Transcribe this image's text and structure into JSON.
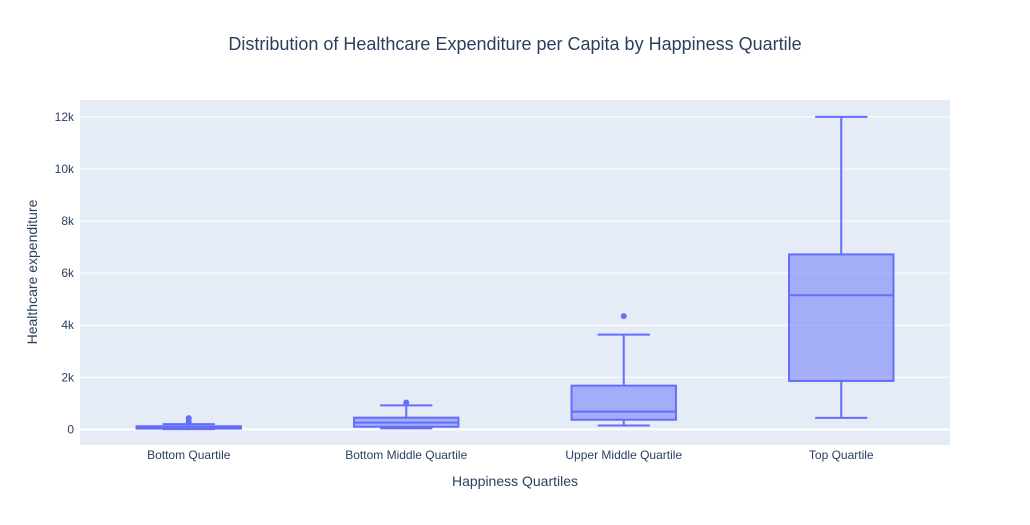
{
  "chart_data": {
    "type": "box",
    "title": "Distribution of Healthcare Expenditure per Capita by Happiness Quartile",
    "xlabel": "Happiness Quartiles",
    "ylabel": "Healthcare expenditure",
    "ylim": [
      -600,
      12650
    ],
    "y_ticks": [
      0,
      2000,
      4000,
      6000,
      8000,
      10000,
      12000
    ],
    "y_tick_labels": [
      "0",
      "2k",
      "4k",
      "6k",
      "8k",
      "10k",
      "12k"
    ],
    "grid": true,
    "legend": "none",
    "categories": [
      "Bottom Quartile",
      "Bottom Middle Quartile",
      "Upper Middle Quartile",
      "Top Quartile"
    ],
    "boxes": [
      {
        "category": "Bottom Quartile",
        "min": 10,
        "q1": 30,
        "median": 70,
        "q3": 120,
        "max": 200,
        "outliers": [
          300,
          430
        ]
      },
      {
        "category": "Bottom Middle Quartile",
        "min": 40,
        "q1": 100,
        "median": 260,
        "q3": 450,
        "max": 920,
        "outliers": [
          1030
        ]
      },
      {
        "category": "Upper Middle Quartile",
        "min": 150,
        "q1": 370,
        "median": 680,
        "q3": 1680,
        "max": 3640,
        "outliers": [
          4350
        ]
      },
      {
        "category": "Top Quartile",
        "min": 440,
        "q1": 1860,
        "median": 5150,
        "q3": 6720,
        "max": 12000,
        "outliers": []
      }
    ],
    "colors": {
      "line": "#636efa",
      "fill": "#a3a8f5",
      "plot_bg": "#e5ecf6",
      "grid": "#ffffff",
      "text": "#2a3f5f"
    }
  }
}
